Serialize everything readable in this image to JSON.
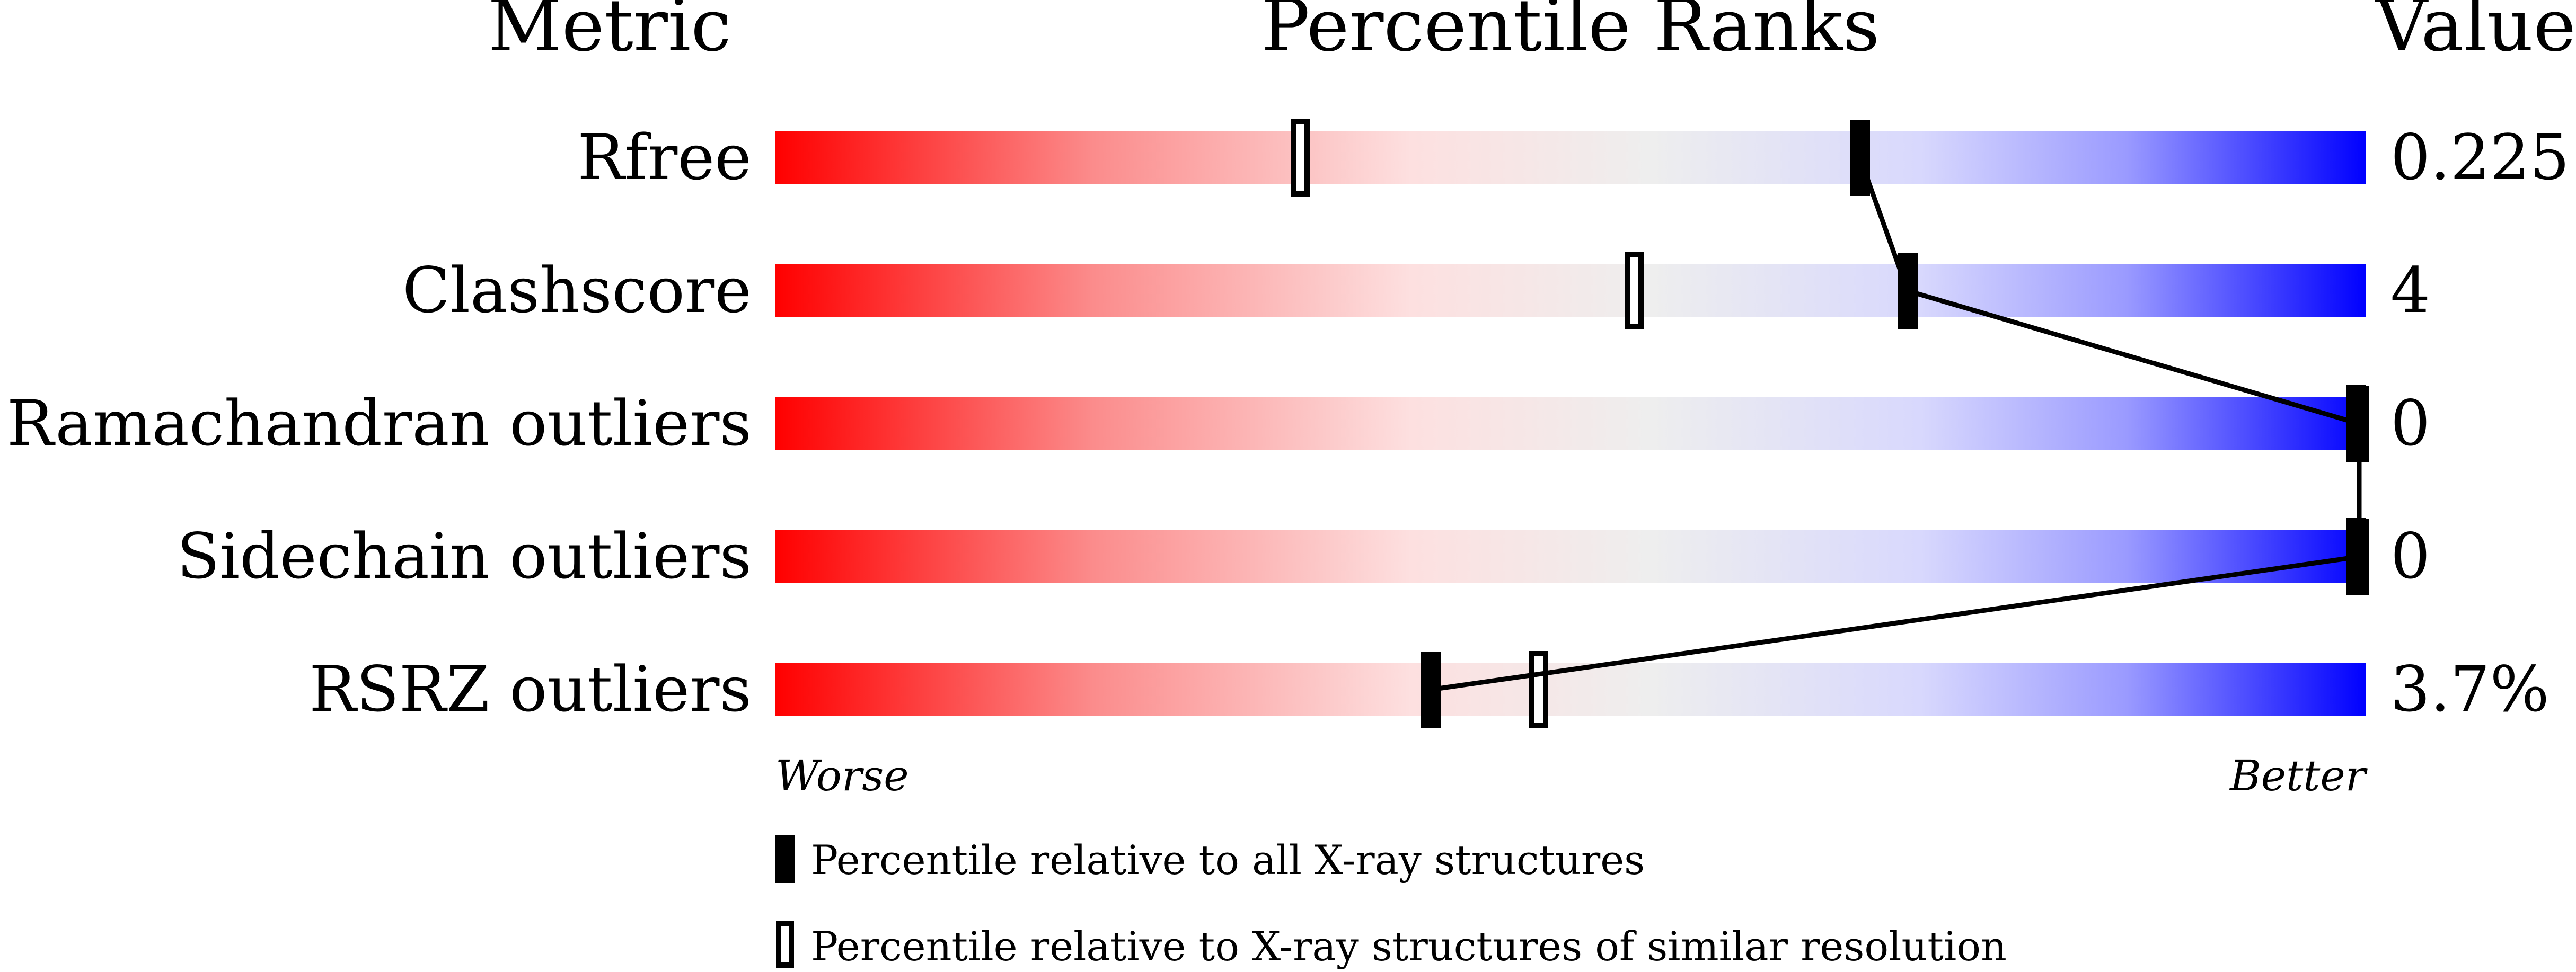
{
  "chart_data": {
    "type": "bar",
    "headers": {
      "metric": "Metric",
      "ranks": "Percentile Ranks",
      "value": "Value"
    },
    "xlim": [
      0,
      100
    ],
    "scale_left": "Worse",
    "scale_right": "Better",
    "rows": [
      {
        "metric": "Rfree",
        "value": "0.225",
        "percentile_all": 68,
        "percentile_similar": 33
      },
      {
        "metric": "Clashscore",
        "value": "4",
        "percentile_all": 71,
        "percentile_similar": 54
      },
      {
        "metric": "Ramachandran outliers",
        "value": "0",
        "percentile_all": 100,
        "percentile_similar": 100
      },
      {
        "metric": "Sidechain outliers",
        "value": "0",
        "percentile_all": 100,
        "percentile_similar": 100
      },
      {
        "metric": "RSRZ outliers",
        "value": "3.7%",
        "percentile_all": 41,
        "percentile_similar": 48
      }
    ],
    "legend": [
      {
        "marker": "filled",
        "label": "Percentile relative to all X-ray structures"
      },
      {
        "marker": "open",
        "label": "Percentile relative to X-ray structures of similar resolution"
      }
    ],
    "colors": {
      "worse": "#ff0000",
      "mid": "#eeeeee",
      "better": "#0000ff",
      "marker": "#000000"
    }
  }
}
